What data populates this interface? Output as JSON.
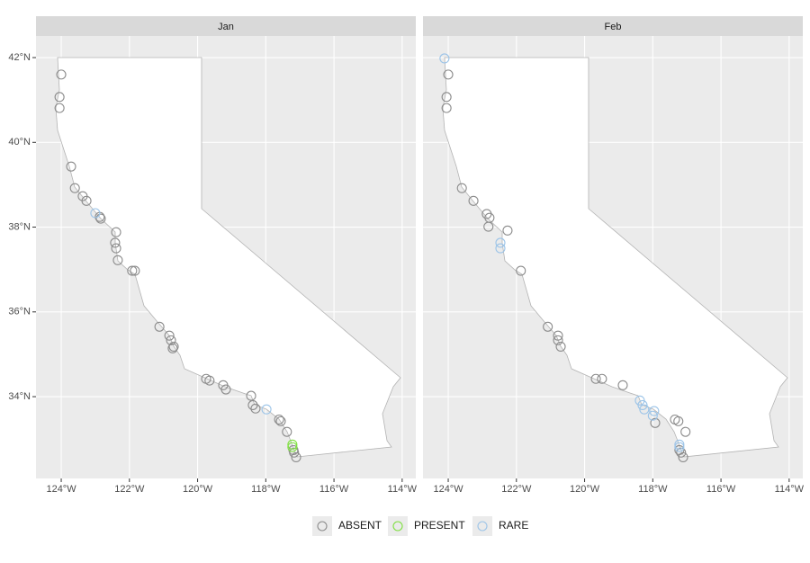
{
  "chart_data": {
    "type": "scatter",
    "facets": [
      "Jan",
      "Feb"
    ],
    "xlim": [
      -124.74,
      -113.6
    ],
    "ylim": [
      32.07,
      42.51
    ],
    "xticks": [
      {
        "value": -124,
        "label": "124°W"
      },
      {
        "value": -122,
        "label": "122°W"
      },
      {
        "value": -120,
        "label": "120°W"
      },
      {
        "value": -118,
        "label": "118°W"
      },
      {
        "value": -116,
        "label": "116°W"
      },
      {
        "value": -114,
        "label": "114°W"
      }
    ],
    "yticks": [
      {
        "value": 34,
        "label": "34°N"
      },
      {
        "value": 36,
        "label": "36°N"
      },
      {
        "value": 38,
        "label": "38°N"
      },
      {
        "value": 40,
        "label": "40°N"
      },
      {
        "value": 42,
        "label": "42°N"
      }
    ],
    "grid": true,
    "legend": "bottom",
    "series": [
      {
        "name": "ABSENT",
        "color": "#8c8c8c",
        "x": [
          [
            -124.0,
            -124.05,
            -124.05,
            -123.71,
            -123.6,
            -123.37,
            -123.26,
            -122.87,
            -122.84,
            -122.39,
            -122.42,
            -122.39,
            -122.34,
            -121.92,
            -121.84,
            -121.12,
            -120.83,
            -120.78,
            -120.7,
            -120.73,
            -119.75,
            -119.65,
            -119.25,
            -119.17,
            -118.43,
            -118.38,
            -118.3,
            -117.61,
            -117.56,
            -117.38,
            -117.19,
            -117.17,
            -117.11
          ],
          [
            -124.0,
            -124.05,
            -124.05,
            -123.6,
            -123.26,
            -122.87,
            -122.79,
            -122.82,
            -122.26,
            -121.87,
            -121.08,
            -120.78,
            -120.78,
            -120.7,
            -119.67,
            -119.49,
            -118.88,
            -117.93,
            -117.35,
            -117.25,
            -117.04,
            -117.22,
            -117.17,
            -117.11
          ]
        ],
        "y": [
          [
            41.6,
            41.07,
            40.81,
            39.43,
            38.92,
            38.73,
            38.62,
            38.24,
            38.2,
            37.88,
            37.63,
            37.5,
            37.22,
            36.97,
            36.97,
            35.65,
            35.44,
            35.33,
            35.18,
            35.14,
            34.42,
            34.38,
            34.27,
            34.17,
            34.02,
            33.8,
            33.72,
            33.46,
            33.42,
            33.17,
            32.74,
            32.68,
            32.57
          ],
          [
            41.6,
            41.07,
            40.81,
            38.92,
            38.62,
            38.31,
            38.22,
            38.01,
            37.92,
            36.97,
            35.65,
            35.44,
            35.33,
            35.18,
            34.42,
            34.42,
            34.27,
            33.38,
            33.46,
            33.42,
            33.17,
            32.74,
            32.68,
            32.57
          ]
        ]
      },
      {
        "name": "PRESENT",
        "color": "#7fe040",
        "x": [
          [
            -117.22,
            -117.22
          ],
          []
        ],
        "y": [
          [
            32.87,
            32.81
          ],
          []
        ]
      },
      {
        "name": "RARE",
        "color": "#9cc4e8",
        "x": [
          [
            -123.0,
            -117.98
          ],
          [
            -124.11,
            -122.47,
            -122.47,
            -118.38,
            -118.3,
            -118.25,
            -117.96,
            -118.0,
            -117.22,
            -117.22
          ]
        ],
        "y": [
          [
            38.33,
            33.7
          ],
          [
            41.98,
            37.63,
            37.5,
            33.91,
            33.8,
            33.7,
            33.66,
            33.55,
            32.87,
            32.81
          ]
        ]
      }
    ]
  }
}
